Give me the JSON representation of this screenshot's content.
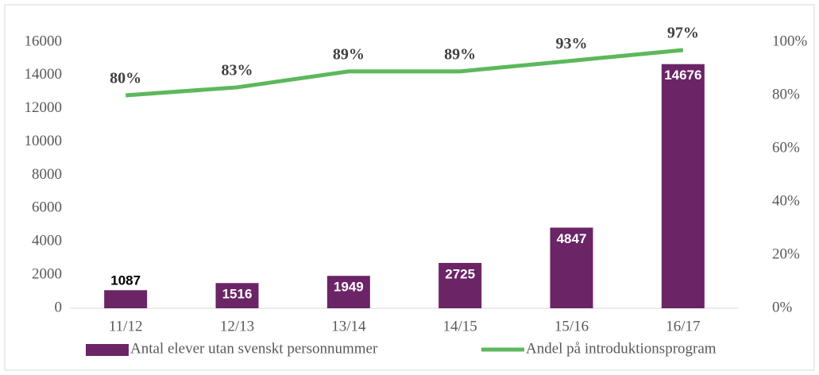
{
  "chart_data": {
    "type": "bar_line",
    "categories": [
      "11/12",
      "12/13",
      "13/14",
      "14/15",
      "15/16",
      "16/17"
    ],
    "series": [
      {
        "name": "Antal elever utan svenskt personnummer",
        "color": "#6b2466",
        "type": "bar",
        "values": [
          1087,
          1516,
          1949,
          2725,
          4847,
          14676
        ]
      },
      {
        "name": "Andel på introduktionsprogram",
        "color": "#5cb85c",
        "type": "line",
        "axis": "y2",
        "values": [
          80,
          83,
          89,
          89,
          93,
          97
        ],
        "value_labels": [
          "80%",
          "83%",
          "89%",
          "89%",
          "93%",
          "97%"
        ]
      }
    ],
    "ylim": [
      0,
      16000
    ],
    "yticks": [
      0,
      2000,
      4000,
      6000,
      8000,
      10000,
      12000,
      14000,
      16000
    ],
    "y2lim": [
      0,
      100
    ],
    "y2ticks": [
      {
        "value": 0,
        "label": "0%"
      },
      {
        "value": 20,
        "label": "20%"
      },
      {
        "value": 40,
        "label": "40%"
      },
      {
        "value": 60,
        "label": "60%"
      },
      {
        "value": 80,
        "label": "80%"
      },
      {
        "value": 100,
        "label": "100%"
      }
    ],
    "legend": "bottom"
  }
}
